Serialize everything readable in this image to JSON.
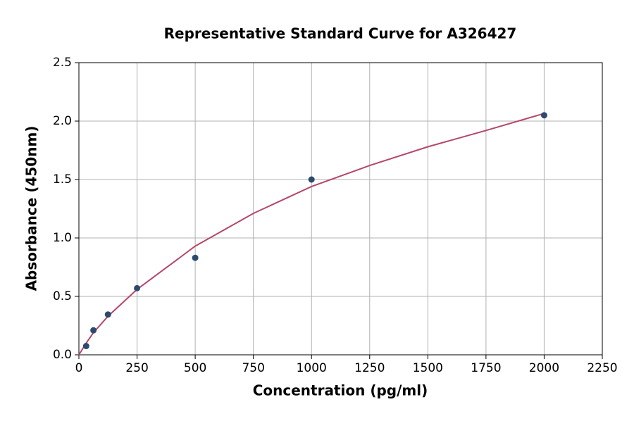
{
  "chart_data": {
    "type": "scatter",
    "title": "Representative Standard Curve for A326427",
    "x_label": "Concentration (pg/ml)",
    "y_label": "Absorbance (450nm)",
    "xlim": [
      0,
      2250
    ],
    "ylim": [
      0,
      2.5
    ],
    "xticks": [
      0,
      250,
      500,
      750,
      1000,
      1250,
      1500,
      1750,
      2000,
      2250
    ],
    "yticks": [
      {
        "value": 0,
        "label": "0.0"
      },
      0.5,
      {
        "value": 1,
        "label": "1.0"
      },
      1.5,
      {
        "value": 2,
        "label": "2.0"
      },
      2.5
    ],
    "grid": true,
    "points": {
      "color": "#2d4a6e",
      "x": [
        31.25,
        62.5,
        125,
        250,
        500,
        1000,
        2000
      ],
      "values": [
        0.075,
        0.21,
        0.345,
        0.57,
        0.83,
        1.5,
        2.05
      ]
    },
    "curve": {
      "color": "#b5476a",
      "x": [
        0,
        31.25,
        62.5,
        125,
        250,
        500,
        750,
        1000,
        1250,
        1500,
        1750,
        2000
      ],
      "values": [
        0.0,
        0.1,
        0.19,
        0.33,
        0.56,
        0.93,
        1.21,
        1.44,
        1.62,
        1.78,
        1.92,
        2.065
      ]
    }
  }
}
